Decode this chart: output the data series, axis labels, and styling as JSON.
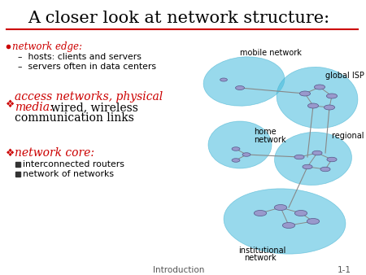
{
  "title": "A closer look at network structure:",
  "title_color": "#000000",
  "title_fontsize": 15,
  "underline_color": "#cc0000",
  "bg_color": "#ffffff",
  "footer_left": "Introduction",
  "footer_right": "1-1",
  "footer_fontsize": 7.5,
  "bullet1_label": "network edge:",
  "bullet1_color": "#cc0000",
  "bullet1_sub": [
    "hosts: clients and servers",
    "servers often in data centers"
  ],
  "bullet2_red": "access networks, physical\nmedia:",
  "bullet2_black": " wired, wireless\ncommunication links",
  "bullet2_color": "#cc0000",
  "bullet3_label": "network core:",
  "bullet3_color": "#cc0000",
  "bullet3_sub": [
    "interconnected routers",
    "network of networks"
  ],
  "blob_color": "#44bbdd",
  "blob_alpha": 0.55,
  "blob_edge": "#33aacc",
  "node_color": "#8888bb",
  "node_edge": "#555588",
  "line_color": "#888888",
  "text_black": "#000000",
  "text_red": "#cc0000",
  "diamond_color": "#cc0000",
  "sub_bullet_color": "#333333"
}
